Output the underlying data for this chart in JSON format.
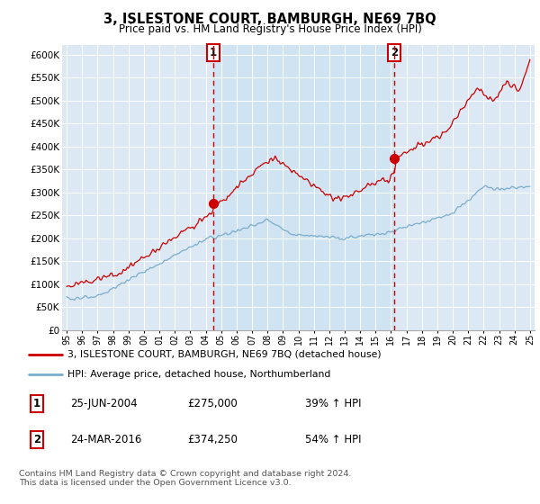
{
  "title": "3, ISLESTONE COURT, BAMBURGH, NE69 7BQ",
  "subtitle": "Price paid vs. HM Land Registry's House Price Index (HPI)",
  "bg_color": "#dce9f5",
  "shade_color": "#c8dff0",
  "red_color": "#cc0000",
  "blue_color": "#7aadcc",
  "grid_color": "#c0c0c0",
  "ylim": [
    0,
    620000
  ],
  "yticks": [
    0,
    50000,
    100000,
    150000,
    200000,
    250000,
    300000,
    350000,
    400000,
    450000,
    500000,
    550000,
    600000
  ],
  "ytick_labels": [
    "£0",
    "£50K",
    "£100K",
    "£150K",
    "£200K",
    "£250K",
    "£300K",
    "£350K",
    "£400K",
    "£450K",
    "£500K",
    "£550K",
    "£600K"
  ],
  "xlim_left": 1994.7,
  "xlim_right": 2025.3,
  "sale1_x": 2004.48,
  "sale1_y": 275000,
  "sale1_label": "1",
  "sale2_x": 2016.22,
  "sale2_y": 374250,
  "sale2_label": "2",
  "legend_line1": "3, ISLESTONE COURT, BAMBURGH, NE69 7BQ (detached house)",
  "legend_line2": "HPI: Average price, detached house, Northumberland",
  "table_row1_num": "1",
  "table_row1_date": "25-JUN-2004",
  "table_row1_price": "£275,000",
  "table_row1_hpi": "39% ↑ HPI",
  "table_row2_num": "2",
  "table_row2_date": "24-MAR-2016",
  "table_row2_price": "£374,250",
  "table_row2_hpi": "54% ↑ HPI",
  "footer": "Contains HM Land Registry data © Crown copyright and database right 2024.\nThis data is licensed under the Open Government Licence v3.0."
}
